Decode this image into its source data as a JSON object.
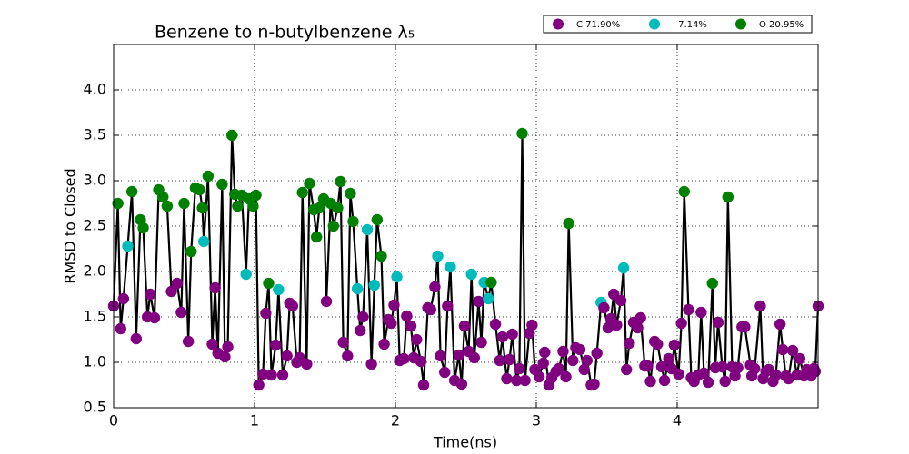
{
  "chart_data": {
    "type": "line",
    "title": "Benzene to n-butylbenzene λ₅",
    "x_label": "Time(ns)",
    "y_label": "RMSD to Closed",
    "xlim": [
      0,
      5
    ],
    "xticks": [
      0,
      1,
      2,
      3,
      4
    ],
    "ylim": [
      0.5,
      4.5
    ],
    "yticks": [
      0.5,
      {
        "value": 1,
        "label": "1.0"
      },
      1.5,
      {
        "value": 2,
        "label": "2.0"
      },
      2.5,
      {
        "value": 3,
        "label": "3.0"
      },
      3.5,
      {
        "value": 4,
        "label": "4.0"
      }
    ],
    "grid": true,
    "line_color": "#000000",
    "legend": [
      {
        "label": "C 71.90%",
        "color": "purple"
      },
      {
        "label": "I 7.14%",
        "color": "#0bb"
      },
      {
        "label": "O 20.95%",
        "color": "green"
      }
    ],
    "x": [
      0,
      0.03,
      0.05,
      0.07,
      0.1,
      0.13,
      0.16,
      0.19,
      0.21,
      0.24,
      0.26,
      0.29,
      0.32,
      0.35,
      0.38,
      0.41,
      0.45,
      0.48,
      0.5,
      0.53,
      0.55,
      0.58,
      0.61,
      0.63,
      0.64,
      0.67,
      0.7,
      0.72,
      0.74,
      0.77,
      0.79,
      0.81,
      0.84,
      0.86,
      0.88,
      0.91,
      0.94,
      0.96,
      0.99,
      1.01,
      1.03,
      1.06,
      1.08,
      1.1,
      1.12,
      1.15,
      1.17,
      1.2,
      1.23,
      1.25,
      1.27,
      1.3,
      1.32,
      1.34,
      1.37,
      1.39,
      1.42,
      1.44,
      1.46,
      1.49,
      1.51,
      1.54,
      1.56,
      1.59,
      1.61,
      1.63,
      1.66,
      1.68,
      1.7,
      1.73,
      1.75,
      1.77,
      1.8,
      1.83,
      1.85,
      1.87,
      1.9,
      1.92,
      1.95,
      1.97,
      1.99,
      2.01,
      2.03,
      2.06,
      2.08,
      2.11,
      2.13,
      2.15,
      2.18,
      2.2,
      2.23,
      2.25,
      2.28,
      2.3,
      2.32,
      2.35,
      2.37,
      2.39,
      2.42,
      2.45,
      2.47,
      2.49,
      2.52,
      2.54,
      2.56,
      2.59,
      2.61,
      2.63,
      2.66,
      2.68,
      2.71,
      2.74,
      2.76,
      2.79,
      2.81,
      2.83,
      2.86,
      2.88,
      2.9,
      2.92,
      2.95,
      2.97,
      2.99,
      3.02,
      3.05,
      3.06,
      3.09,
      3.11,
      3.14,
      3.16,
      3.19,
      3.21,
      3.23,
      3.26,
      3.28,
      3.31,
      3.34,
      3.36,
      3.39,
      3.41,
      3.43,
      3.46,
      3.48,
      3.51,
      3.53,
      3.55,
      3.57,
      3.6,
      3.62,
      3.64,
      3.66,
      3.69,
      3.72,
      3.74,
      3.77,
      3.79,
      3.81,
      3.84,
      3.86,
      3.89,
      3.91,
      3.94,
      3.96,
      3.98,
      4.01,
      4.03,
      4.05,
      4.08,
      4.1,
      4.12,
      4.15,
      4.17,
      4.19,
      4.22,
      4.25,
      4.27,
      4.29,
      4.32,
      4.34,
      4.36,
      4.39,
      4.41,
      4.43,
      4.46,
      4.48,
      4.52,
      4.53,
      4.55,
      4.59,
      4.61,
      4.63,
      4.65,
      4.68,
      4.7,
      4.73,
      4.75,
      4.77,
      4.79,
      4.82,
      4.85,
      4.87,
      4.9,
      4.92,
      4.95,
      4.97,
      4.98,
      5.0
    ],
    "values": [
      1.62,
      2.75,
      1.37,
      1.7,
      2.28,
      2.88,
      1.26,
      2.57,
      2.48,
      1.5,
      1.75,
      1.49,
      2.9,
      2.82,
      2.72,
      1.78,
      1.87,
      1.55,
      2.75,
      1.23,
      2.22,
      2.92,
      2.9,
      2.7,
      2.33,
      3.05,
      1.2,
      1.82,
      1.1,
      2.96,
      1.06,
      1.17,
      3.5,
      2.85,
      2.72,
      2.84,
      1.97,
      2.8,
      2.72,
      2.84,
      0.75,
      0.87,
      1.54,
      1.87,
      0.86,
      1.19,
      1.8,
      0.86,
      1.07,
      1.65,
      1.62,
      1,
      1.05,
      2.87,
      0.98,
      2.97,
      2.68,
      2.38,
      2.7,
      2.8,
      1.67,
      2.75,
      2.5,
      2.7,
      2.99,
      1.22,
      1.07,
      2.86,
      2.55,
      1.81,
      1.35,
      1.5,
      2.46,
      0.98,
      1.85,
      2.57,
      2.17,
      1.2,
      1.47,
      1.43,
      1.63,
      1.94,
      1.02,
      1.04,
      1.51,
      1.4,
      1.05,
      1.25,
      1.01,
      0.75,
      1.6,
      1.58,
      1.83,
      2.17,
      1.07,
      0.89,
      1.62,
      2.05,
      0.8,
      1.08,
      0.76,
      1.4,
      1.12,
      1.97,
      1.05,
      1.67,
      1.22,
      1.88,
      1.7,
      1.88,
      1.42,
      1.02,
      1.28,
      0.82,
      1.03,
      1.31,
      0.8,
      0.93,
      3.52,
      0.8,
      1.32,
      1.41,
      0.92,
      0.84,
      0.99,
      1.11,
      0.75,
      0.83,
      0.9,
      0.93,
      1.12,
      0.84,
      2.53,
      1.02,
      1.16,
      1.14,
      0.92,
      1.02,
      0.75,
      0.76,
      1.1,
      1.66,
      1.6,
      1.38,
      1.48,
      1.75,
      1.41,
      1.68,
      2.04,
      0.92,
      1.21,
      1.44,
      1.38,
      1.49,
      0.96,
      0.96,
      0.79,
      1.23,
      1.2,
      0.95,
      0.8,
      1.04,
      0.93,
      1.19,
      0.87,
      1.43,
      2.88,
      1.58,
      0.83,
      0.79,
      0.86,
      1.55,
      0.88,
      0.78,
      1.87,
      0.94,
      1.44,
      0.95,
      0.79,
      2.82,
      0.95,
      0.85,
      0.94,
      1.39,
      1.39,
      0.97,
      0.85,
      0.93,
      1.62,
      0.82,
      0.9,
      0.92,
      0.79,
      0.86,
      1.42,
      1.14,
      0.85,
      0.82,
      1.13,
      0.86,
      1.04,
      0.85,
      0.92,
      0.85,
      0.93,
      0.9,
      1.62
    ],
    "point_colors": [
      "purple",
      "green",
      "purple",
      "purple",
      "#0bb",
      "green",
      "purple",
      "green",
      "green",
      "purple",
      "purple",
      "purple",
      "green",
      "green",
      "green",
      "purple",
      "purple",
      "purple",
      "green",
      "purple",
      "green",
      "green",
      "green",
      "green",
      "#0bb",
      "green",
      "purple",
      "purple",
      "purple",
      "green",
      "purple",
      "purple",
      "green",
      "green",
      "green",
      "green",
      "#0bb",
      "green",
      "green",
      "green",
      "purple",
      "purple",
      "purple",
      "green",
      "purple",
      "purple",
      "#0bb",
      "purple",
      "purple",
      "purple",
      "purple",
      "purple",
      "purple",
      "green",
      "purple",
      "green",
      "green",
      "green",
      "green",
      "green",
      "purple",
      "green",
      "green",
      "green",
      "green",
      "purple",
      "purple",
      "green",
      "green",
      "#0bb",
      "purple",
      "purple",
      "#0bb",
      "purple",
      "#0bb",
      "green",
      "green",
      "purple",
      "purple",
      "purple",
      "purple",
      "#0bb",
      "purple",
      "purple",
      "purple",
      "purple",
      "purple",
      "purple",
      "purple",
      "purple",
      "purple",
      "purple",
      "purple",
      "#0bb",
      "purple",
      "purple",
      "purple",
      "#0bb",
      "purple",
      "purple",
      "purple",
      "purple",
      "purple",
      "#0bb",
      "purple",
      "purple",
      "purple",
      "#0bb",
      "#0bb",
      "green",
      "purple",
      "purple",
      "purple",
      "purple",
      "purple",
      "purple",
      "purple",
      "purple",
      "green",
      "purple",
      "purple",
      "purple",
      "purple",
      "purple",
      "purple",
      "purple",
      "purple",
      "purple",
      "purple",
      "purple",
      "purple",
      "purple",
      "green",
      "purple",
      "purple",
      "purple",
      "purple",
      "purple",
      "purple",
      "purple",
      "purple",
      "#0bb",
      "purple",
      "purple",
      "purple",
      "purple",
      "purple",
      "purple",
      "#0bb",
      "purple",
      "purple",
      "purple",
      "purple",
      "purple",
      "purple",
      "purple",
      "purple",
      "purple",
      "purple",
      "purple",
      "purple",
      "purple",
      "purple",
      "purple",
      "purple",
      "purple",
      "green",
      "purple",
      "purple",
      "purple",
      "purple",
      "purple",
      "purple",
      "purple",
      "green",
      "purple",
      "purple",
      "purple",
      "purple",
      "green",
      "purple",
      "purple",
      "purple",
      "purple",
      "purple",
      "purple",
      "purple",
      "purple",
      "purple",
      "purple",
      "purple",
      "purple",
      "purple",
      "purple",
      "purple",
      "purple",
      "purple",
      "purple",
      "purple",
      "purple",
      "purple",
      "purple",
      "purple",
      "purple",
      "purple",
      "purple",
      "purple"
    ]
  }
}
